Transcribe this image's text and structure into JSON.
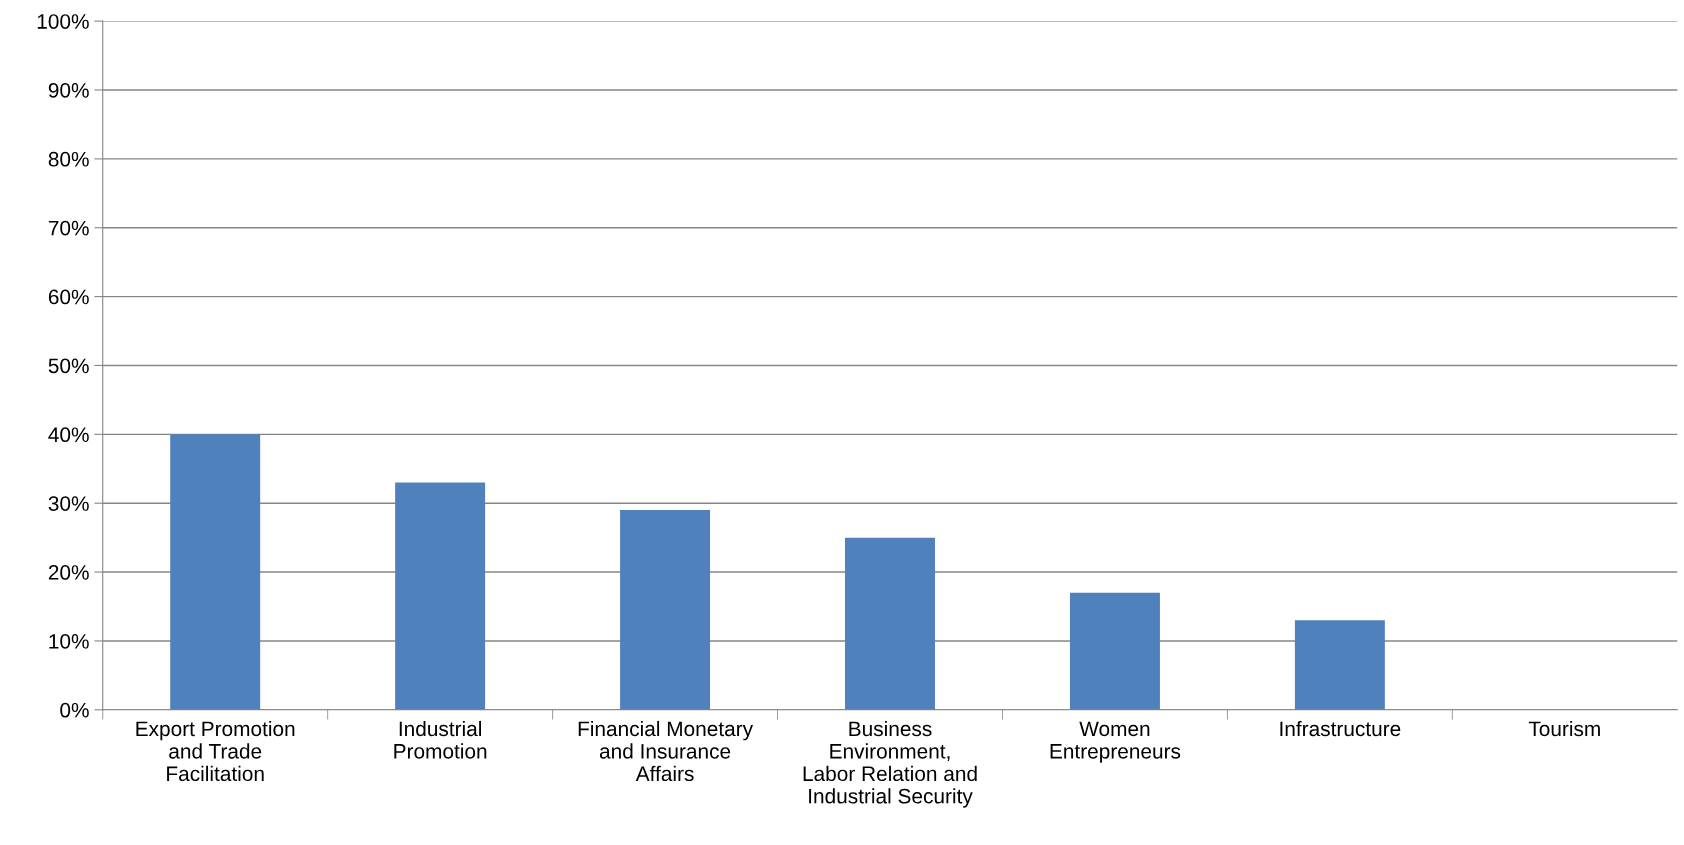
{
  "chart_data": {
    "type": "bar",
    "categories": [
      "Export Promotion\nand Trade\nFacilitation",
      "Industrial\nPromotion",
      "Financial Monetary\nand Insurance\nAffairs",
      "Business\nEnvironment,\nLabor Relation and\nIndustrial Security",
      "Women\nEntrepreneurs",
      "Infrastructure",
      "Tourism"
    ],
    "values": [
      40,
      33,
      29,
      25,
      17,
      13,
      0
    ],
    "color": "#4f81bd",
    "ylim": [
      0,
      100
    ],
    "yticks": [
      {
        "value": 0,
        "label": "0%"
      },
      {
        "value": 10,
        "label": "10%"
      },
      {
        "value": 20,
        "label": "20%"
      },
      {
        "value": 30,
        "label": "30%"
      },
      {
        "value": 40,
        "label": "40%"
      },
      {
        "value": 50,
        "label": "50%"
      },
      {
        "value": 60,
        "label": "60%"
      },
      {
        "value": 70,
        "label": "70%"
      },
      {
        "value": 80,
        "label": "80%"
      },
      {
        "value": 90,
        "label": "90%"
      },
      {
        "value": 100,
        "label": "100%"
      }
    ],
    "grid": "y"
  }
}
